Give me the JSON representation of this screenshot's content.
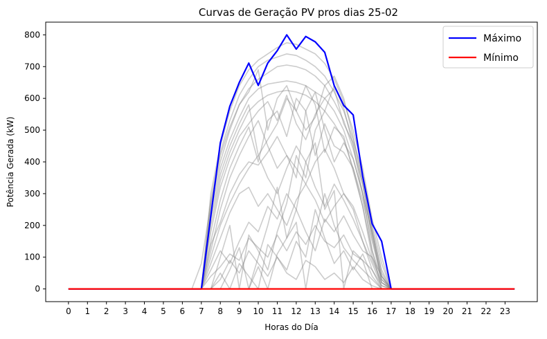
{
  "chart_data": {
    "type": "line",
    "title": "Curvas de Geração PV pros dias 25-02",
    "xlabel": "Horas do Día",
    "ylabel": "Potência Gerada (kW)",
    "xlim": [
      -1.2,
      24.7
    ],
    "ylim": [
      -40,
      840
    ],
    "x_ticks": [
      0,
      1,
      2,
      3,
      4,
      5,
      6,
      7,
      8,
      9,
      10,
      11,
      12,
      13,
      14,
      15,
      16,
      17,
      18,
      19,
      20,
      21,
      22,
      23
    ],
    "y_ticks": [
      0,
      100,
      200,
      300,
      400,
      500,
      600,
      700,
      800
    ],
    "grid": false,
    "legend_position": "top-right",
    "x": [
      0,
      0.5,
      1,
      1.5,
      2,
      2.5,
      3,
      3.5,
      4,
      4.5,
      5,
      5.5,
      6,
      6.5,
      7,
      7.5,
      8,
      8.5,
      9,
      9.5,
      10,
      10.5,
      11,
      11.5,
      12,
      12.5,
      13,
      13.5,
      14,
      14.5,
      15,
      15.5,
      16,
      16.5,
      17,
      17.5,
      18,
      18.5,
      19,
      19.5,
      20,
      20.5,
      21,
      21.5,
      22,
      22.5,
      23,
      23.5
    ],
    "series": [
      {
        "name": "Máximo",
        "color": "#0000ff",
        "values": [
          0,
          0,
          0,
          0,
          0,
          0,
          0,
          0,
          0,
          0,
          0,
          0,
          0,
          0,
          0,
          230,
          460,
          575,
          650,
          711,
          641,
          711,
          750,
          800,
          755,
          795,
          778,
          745,
          640,
          578,
          548,
          355,
          205,
          150,
          0,
          0,
          0,
          0,
          0,
          0,
          0,
          0,
          0,
          0,
          0,
          0,
          0,
          0
        ]
      },
      {
        "name": "Mínimo",
        "color": "#ff0000",
        "values": [
          0,
          0,
          0,
          0,
          0,
          0,
          0,
          0,
          0,
          0,
          0,
          0,
          0,
          0,
          0,
          0,
          0,
          0,
          0,
          0,
          0,
          0,
          0,
          0,
          0,
          0,
          0,
          0,
          0,
          0,
          0,
          0,
          0,
          0,
          0,
          0,
          0,
          0,
          0,
          0,
          0,
          0,
          0,
          0,
          0,
          0,
          0,
          0
        ]
      }
    ],
    "background_series_color": "#808080",
    "background_series": [
      [
        0,
        0,
        0,
        0,
        0,
        0,
        0,
        0,
        0,
        0,
        0,
        0,
        0,
        0,
        0,
        300,
        450,
        560,
        640,
        690,
        720,
        740,
        760,
        775,
        770,
        755,
        740,
        710,
        660,
        590,
        500,
        380,
        220,
        100,
        0,
        0,
        0,
        0,
        0,
        0,
        0,
        0,
        0,
        0,
        0,
        0,
        0,
        0
      ],
      [
        0,
        0,
        0,
        0,
        0,
        0,
        0,
        0,
        0,
        0,
        0,
        0,
        0,
        0,
        0,
        280,
        430,
        530,
        610,
        660,
        700,
        720,
        730,
        740,
        735,
        720,
        700,
        670,
        620,
        560,
        470,
        360,
        200,
        80,
        0,
        0,
        0,
        0,
        0,
        0,
        0,
        0,
        0,
        0,
        0,
        0,
        0,
        0
      ],
      [
        0,
        0,
        0,
        0,
        0,
        0,
        0,
        0,
        0,
        0,
        0,
        0,
        0,
        0,
        0,
        260,
        400,
        500,
        580,
        630,
        660,
        680,
        700,
        705,
        700,
        690,
        670,
        640,
        590,
        530,
        440,
        330,
        180,
        60,
        0,
        0,
        0,
        0,
        0,
        0,
        0,
        0,
        0,
        0,
        0,
        0,
        0,
        0
      ],
      [
        0,
        0,
        0,
        0,
        0,
        0,
        0,
        0,
        0,
        0,
        0,
        0,
        0,
        0,
        0,
        240,
        380,
        470,
        540,
        600,
        630,
        645,
        650,
        655,
        650,
        640,
        620,
        600,
        560,
        500,
        410,
        300,
        170,
        40,
        0,
        0,
        0,
        0,
        0,
        0,
        0,
        0,
        0,
        0,
        0,
        0,
        0,
        0
      ],
      [
        0,
        0,
        0,
        0,
        0,
        0,
        0,
        0,
        0,
        0,
        0,
        0,
        0,
        0,
        0,
        200,
        340,
        430,
        500,
        560,
        590,
        610,
        620,
        625,
        620,
        610,
        590,
        560,
        520,
        470,
        380,
        280,
        150,
        30,
        0,
        0,
        0,
        0,
        0,
        0,
        0,
        0,
        0,
        0,
        0,
        0,
        0,
        0
      ],
      [
        0,
        0,
        0,
        0,
        0,
        0,
        0,
        0,
        0,
        0,
        0,
        0,
        0,
        0,
        0,
        220,
        360,
        450,
        520,
        580,
        420,
        470,
        520,
        600,
        560,
        500,
        540,
        640,
        670,
        600,
        480,
        340,
        190,
        50,
        0,
        0,
        0,
        0,
        0,
        0,
        0,
        0,
        0,
        0,
        0,
        0,
        0,
        0
      ],
      [
        0,
        0,
        0,
        0,
        0,
        0,
        0,
        0,
        0,
        0,
        0,
        0,
        0,
        0,
        0,
        180,
        320,
        410,
        480,
        520,
        560,
        590,
        530,
        610,
        520,
        470,
        550,
        600,
        630,
        520,
        460,
        330,
        160,
        40,
        0,
        0,
        0,
        0,
        0,
        0,
        0,
        0,
        0,
        0,
        0,
        0,
        0,
        0
      ],
      [
        0,
        0,
        0,
        0,
        0,
        0,
        0,
        0,
        0,
        0,
        0,
        0,
        0,
        0,
        0,
        150,
        280,
        380,
        450,
        510,
        400,
        530,
        560,
        480,
        600,
        560,
        420,
        520,
        450,
        430,
        380,
        260,
        120,
        30,
        0,
        0,
        0,
        0,
        0,
        0,
        0,
        0,
        0,
        0,
        0,
        0,
        0,
        0
      ],
      [
        0,
        0,
        0,
        0,
        0,
        0,
        0,
        0,
        0,
        0,
        0,
        0,
        0,
        0,
        0,
        120,
        250,
        350,
        420,
        480,
        530,
        450,
        380,
        420,
        350,
        560,
        620,
        500,
        400,
        460,
        410,
        300,
        180,
        20,
        0,
        0,
        0,
        0,
        0,
        0,
        0,
        0,
        0,
        0,
        0,
        0,
        0,
        0
      ],
      [
        0,
        0,
        0,
        0,
        0,
        0,
        0,
        0,
        0,
        0,
        0,
        0,
        0,
        0,
        0,
        140,
        210,
        300,
        360,
        400,
        390,
        430,
        480,
        420,
        380,
        330,
        400,
        440,
        380,
        300,
        260,
        180,
        90,
        20,
        0,
        0,
        0,
        0,
        0,
        0,
        0,
        0,
        0,
        0,
        0,
        0,
        0,
        0
      ],
      [
        0,
        0,
        0,
        0,
        0,
        0,
        0,
        0,
        0,
        0,
        0,
        0,
        0,
        0,
        0,
        100,
        200,
        270,
        330,
        380,
        420,
        350,
        300,
        380,
        450,
        400,
        320,
        260,
        330,
        280,
        220,
        150,
        80,
        10,
        0,
        0,
        0,
        0,
        0,
        0,
        0,
        0,
        0,
        0,
        0,
        0,
        0,
        0
      ],
      [
        0,
        0,
        0,
        0,
        0,
        0,
        0,
        0,
        0,
        0,
        0,
        0,
        0,
        0,
        0,
        80,
        160,
        240,
        300,
        320,
        260,
        300,
        250,
        200,
        280,
        330,
        280,
        210,
        260,
        300,
        250,
        150,
        60,
        0,
        0,
        0,
        0,
        0,
        0,
        0,
        0,
        0,
        0,
        0,
        0,
        0,
        0,
        0
      ],
      [
        0,
        0,
        0,
        0,
        0,
        0,
        0,
        0,
        0,
        0,
        0,
        0,
        0,
        0,
        0,
        60,
        120,
        80,
        150,
        210,
        180,
        260,
        220,
        300,
        250,
        180,
        120,
        220,
        180,
        230,
        170,
        120,
        100,
        20,
        0,
        0,
        0,
        0,
        0,
        0,
        0,
        0,
        0,
        0,
        0,
        0,
        0,
        0
      ],
      [
        0,
        0,
        0,
        0,
        0,
        0,
        0,
        0,
        0,
        0,
        0,
        0,
        0,
        0,
        0,
        40,
        70,
        110,
        90,
        160,
        130,
        100,
        170,
        120,
        180,
        140,
        200,
        150,
        130,
        170,
        110,
        90,
        60,
        10,
        0,
        0,
        0,
        0,
        0,
        0,
        0,
        0,
        0,
        0,
        0,
        0,
        0,
        0
      ],
      [
        0,
        0,
        0,
        0,
        0,
        0,
        0,
        0,
        0,
        0,
        0,
        0,
        0,
        0,
        80,
        270,
        420,
        510,
        580,
        620,
        690,
        500,
        600,
        640,
        560,
        640,
        580,
        430,
        510,
        480,
        370,
        260,
        100,
        40,
        0,
        0,
        0,
        0,
        0,
        0,
        0,
        0,
        0,
        0,
        0,
        0,
        0,
        0
      ],
      [
        0,
        0,
        0,
        0,
        0,
        0,
        0,
        0,
        0,
        0,
        0,
        0,
        0,
        0,
        0,
        0,
        100,
        200,
        0,
        170,
        120,
        60,
        180,
        270,
        420,
        350,
        500,
        560,
        640,
        570,
        450,
        300,
        120,
        0,
        0,
        0,
        0,
        0,
        0,
        0,
        0,
        0,
        0,
        0,
        0,
        0,
        0,
        0
      ],
      [
        0,
        0,
        0,
        0,
        0,
        0,
        0,
        0,
        0,
        0,
        0,
        0,
        0,
        0,
        0,
        0,
        0,
        60,
        130,
        0,
        100,
        200,
        320,
        160,
        250,
        400,
        460,
        250,
        310,
        0,
        120,
        90,
        0,
        0,
        0,
        0,
        0,
        0,
        0,
        0,
        0,
        0,
        0,
        0,
        0,
        0,
        0,
        0
      ],
      [
        0,
        0,
        0,
        0,
        0,
        0,
        0,
        0,
        0,
        0,
        0,
        0,
        0,
        0,
        0,
        0,
        50,
        0,
        80,
        40,
        0,
        140,
        100,
        60,
        150,
        100,
        250,
        160,
        80,
        120,
        60,
        110,
        40,
        0,
        0,
        0,
        0,
        0,
        0,
        0,
        0,
        0,
        0,
        0,
        0,
        0,
        0,
        0
      ],
      [
        0,
        0,
        0,
        0,
        0,
        0,
        0,
        0,
        0,
        0,
        0,
        0,
        0,
        0,
        0,
        0,
        0,
        0,
        0,
        0,
        70,
        0,
        110,
        160,
        210,
        0,
        180,
        300,
        200,
        130,
        90,
        60,
        30,
        0,
        0,
        0,
        0,
        0,
        0,
        0,
        0,
        0,
        0,
        0,
        0,
        0,
        0,
        0
      ],
      [
        0,
        0,
        0,
        0,
        0,
        0,
        0,
        0,
        0,
        0,
        0,
        0,
        0,
        0,
        0,
        0,
        30,
        90,
        50,
        120,
        80,
        40,
        100,
        50,
        30,
        90,
        70,
        30,
        50,
        20,
        70,
        30,
        10,
        0,
        0,
        0,
        0,
        0,
        0,
        0,
        0,
        0,
        0,
        0,
        0,
        0,
        0,
        0
      ]
    ]
  }
}
